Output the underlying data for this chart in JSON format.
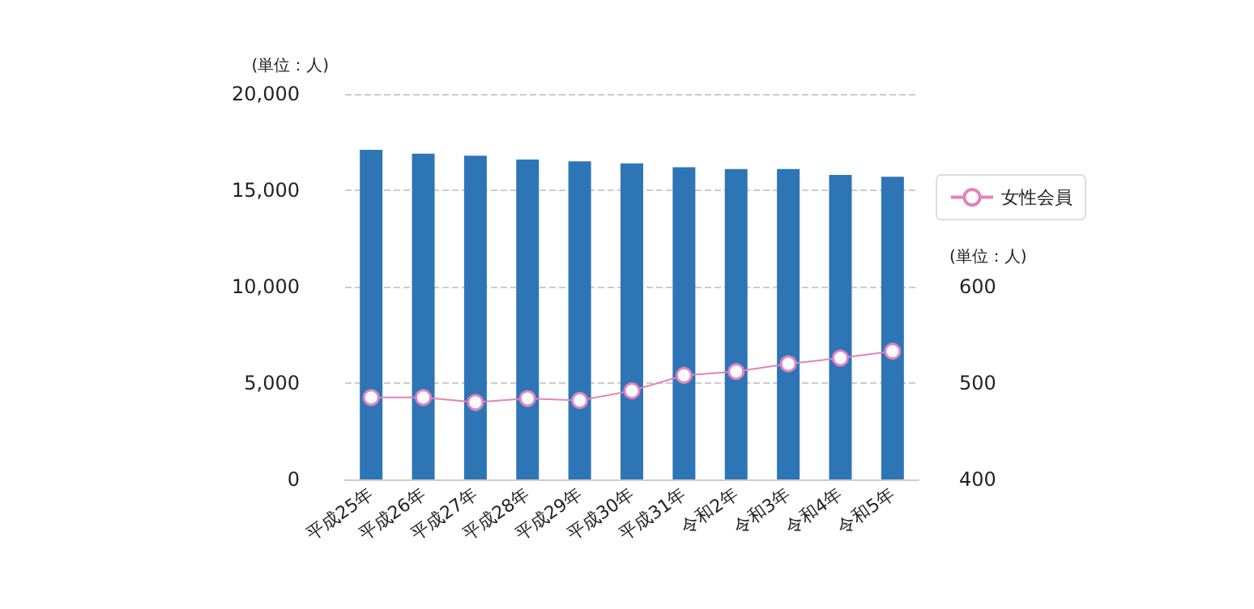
{
  "chart_data": {
    "type": "bar",
    "ylabel": "(単位：人)",
    "y2label": "(単位：人)",
    "categories": [
      "平成25年",
      "平成26年",
      "平成27年",
      "平成28年",
      "平成29年",
      "平成30年",
      "平成31年",
      "令和2年",
      "令和3年",
      "令和4年",
      "令和5年"
    ],
    "series": [
      {
        "color": "#2e75b6",
        "values": [
          17100,
          16900,
          16800,
          16600,
          16500,
          16400,
          16200,
          16100,
          16100,
          15800,
          15700
        ]
      },
      {
        "type": "line",
        "axis": "y2",
        "name": "女性会員",
        "color": "#e283bd",
        "marker": "circle",
        "values": [
          485,
          485,
          480,
          484,
          482,
          492,
          508,
          512,
          520,
          526,
          533
        ]
      }
    ],
    "ylim": [
      0,
      20000
    ],
    "yticks": [
      0,
      {
        "value": 5000,
        "label": "5,000"
      },
      {
        "value": 10000,
        "label": "10,000"
      },
      {
        "value": 15000,
        "label": "15,000"
      },
      {
        "value": 20000,
        "label": "20,000"
      }
    ],
    "y2lim": [
      400,
      800
    ],
    "y2ticks": [
      400,
      500,
      600
    ],
    "grid": "y",
    "legend": "right"
  }
}
